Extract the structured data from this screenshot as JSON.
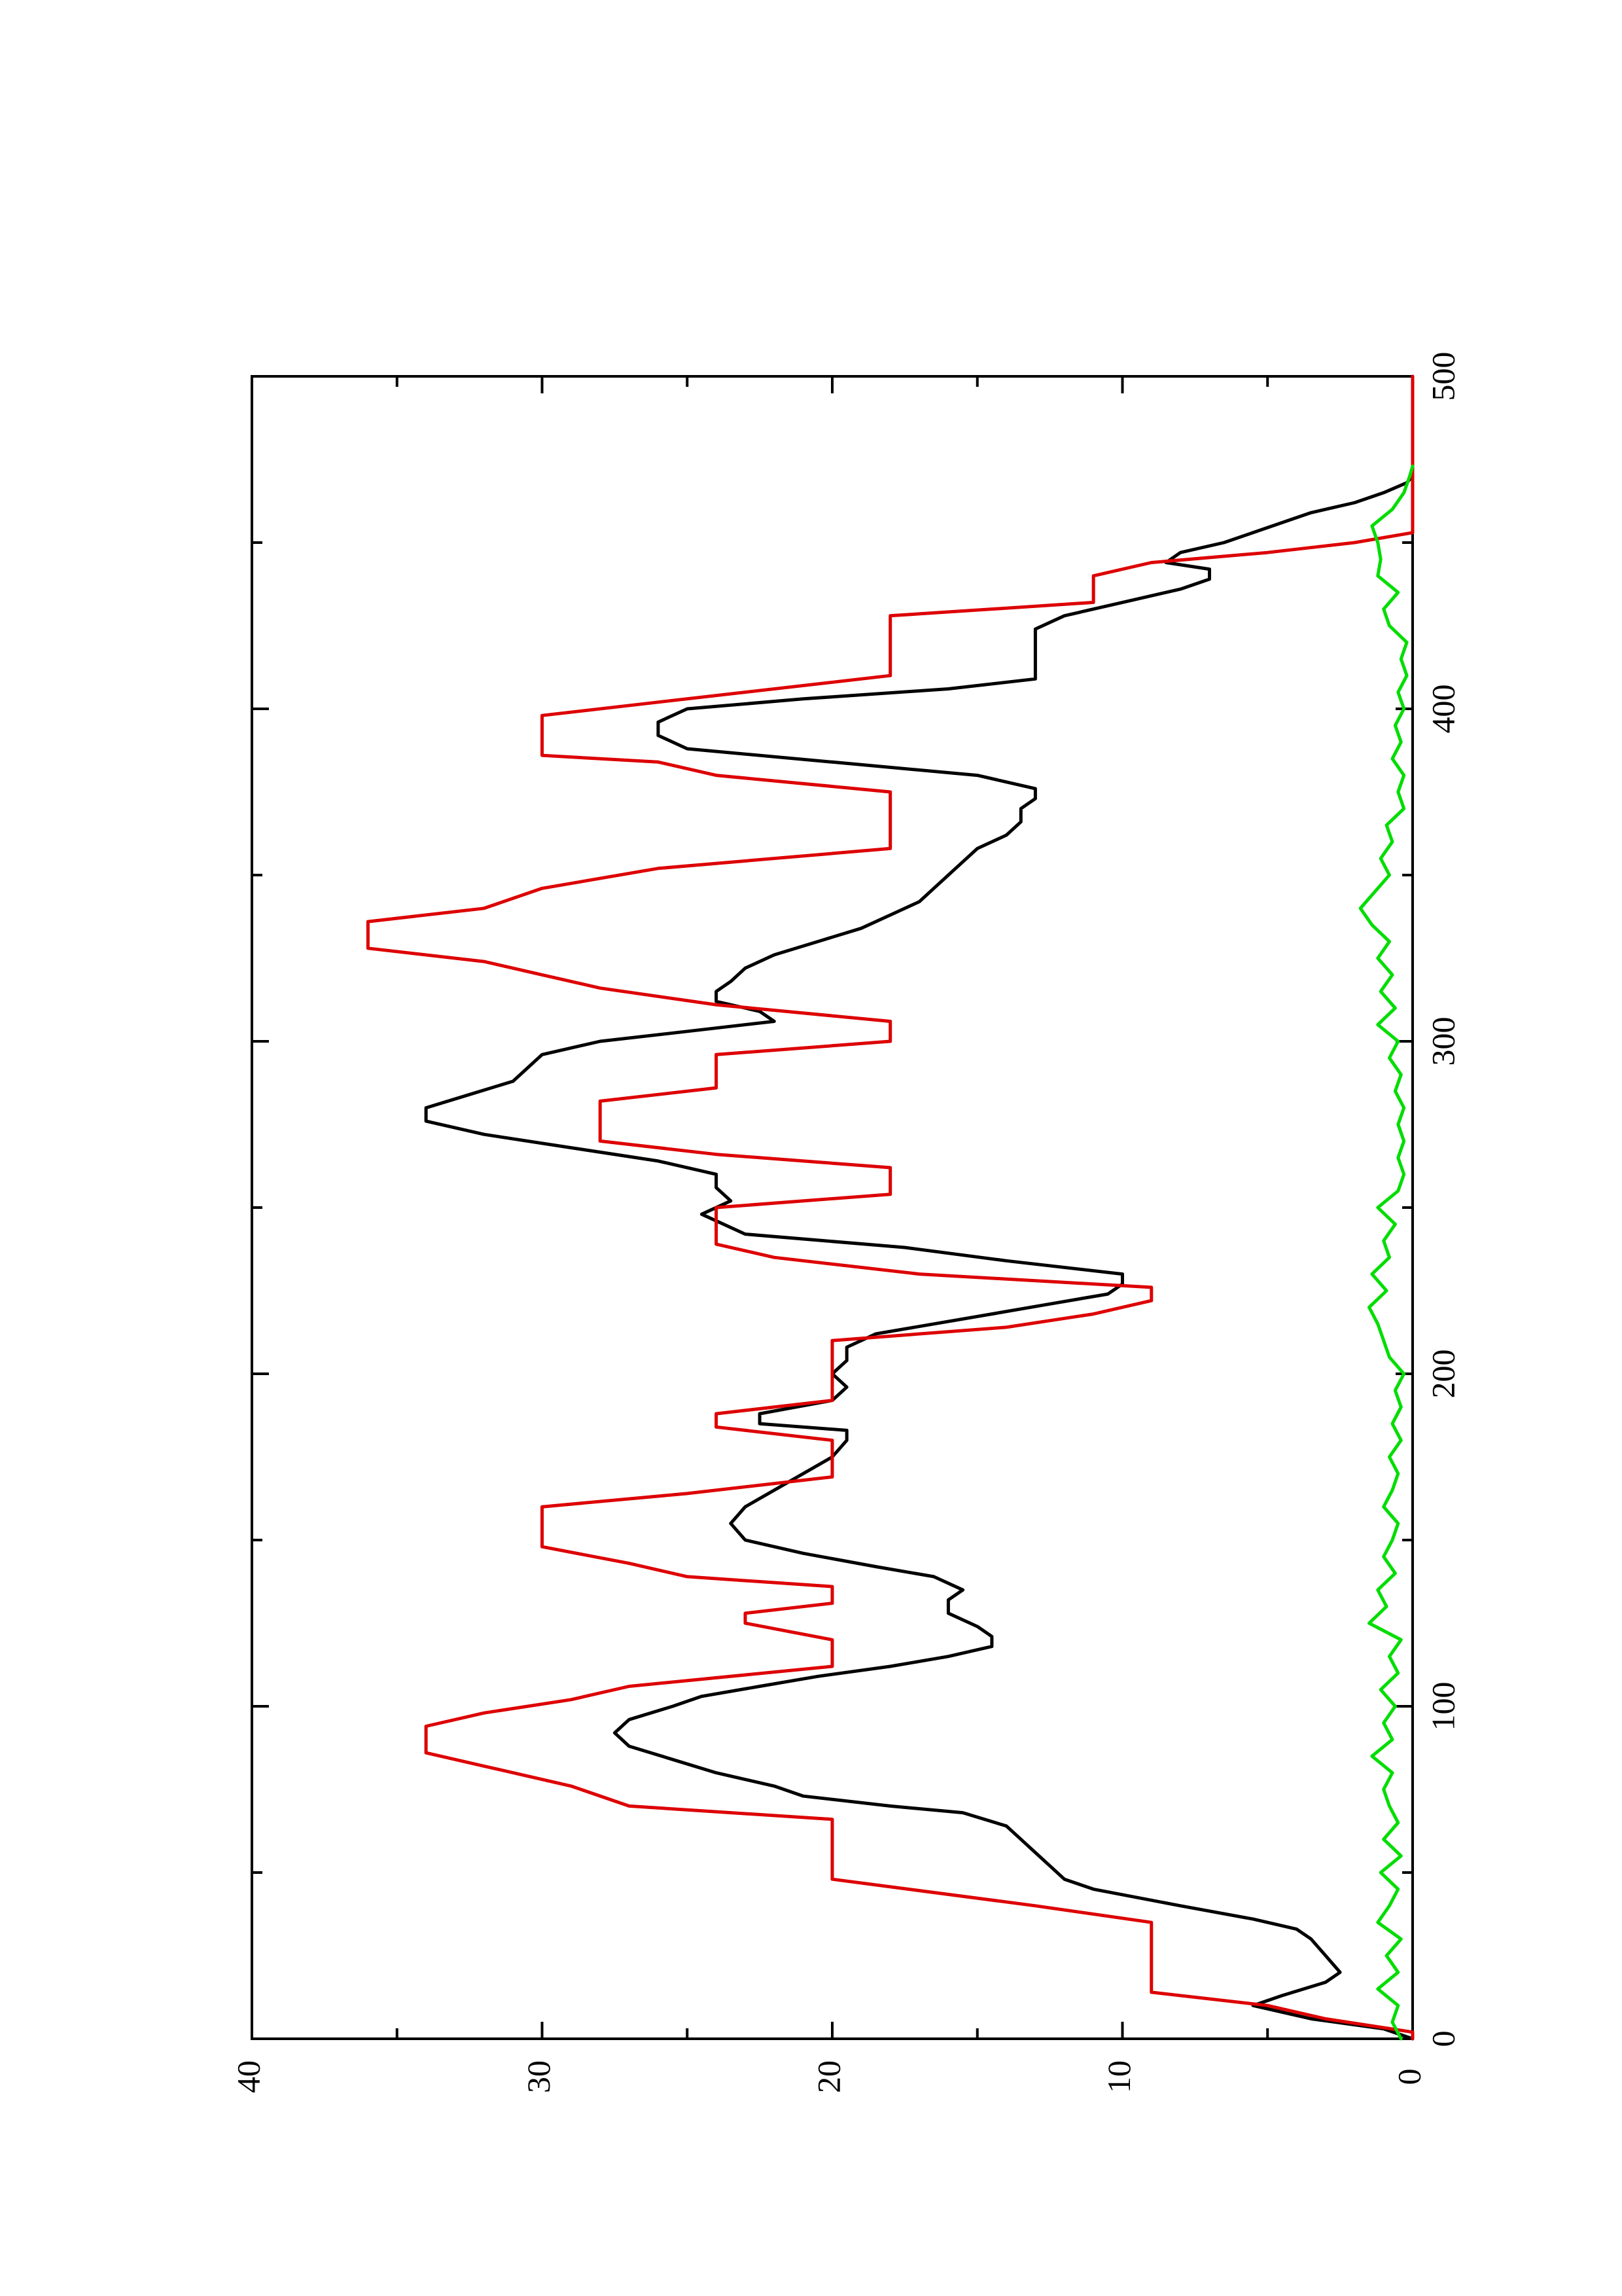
{
  "chart_data": {
    "type": "line",
    "orientation": "rotated-90-counterclockwise",
    "title": "",
    "xlabel": "",
    "ylabel": "",
    "xlim": [
      0,
      500
    ],
    "ylim": [
      0,
      40
    ],
    "x_ticks": [
      0,
      100,
      200,
      300,
      400,
      500
    ],
    "x_tick_labels": [
      "0",
      "100",
      "200",
      "300",
      "400",
      "500"
    ],
    "x_minor_ticks": [
      50,
      150,
      250,
      350,
      450
    ],
    "y_ticks": [
      0,
      10,
      20,
      30,
      40
    ],
    "y_tick_labels": [
      "0",
      "10",
      "20",
      "30",
      "40"
    ],
    "y_minor_ticks": [
      5,
      15,
      25,
      35
    ],
    "grid": false,
    "legend": "none",
    "series": [
      {
        "color": "#000000",
        "points": [
          [
            0,
            0
          ],
          [
            3,
            1
          ],
          [
            6,
            3.5
          ],
          [
            10,
            5.5
          ],
          [
            13,
            4.5
          ],
          [
            17,
            3
          ],
          [
            20,
            2.5
          ],
          [
            25,
            3
          ],
          [
            30,
            3.5
          ],
          [
            33,
            4
          ],
          [
            36,
            5.5
          ],
          [
            40,
            8
          ],
          [
            45,
            11
          ],
          [
            48,
            12
          ],
          [
            52,
            12.5
          ],
          [
            56,
            13
          ],
          [
            60,
            13.5
          ],
          [
            64,
            14
          ],
          [
            68,
            15.5
          ],
          [
            70,
            18
          ],
          [
            73,
            21
          ],
          [
            76,
            22
          ],
          [
            80,
            24
          ],
          [
            84,
            25.5
          ],
          [
            88,
            27
          ],
          [
            92,
            27.5
          ],
          [
            96,
            27
          ],
          [
            100,
            25.5
          ],
          [
            103,
            24.5
          ],
          [
            106,
            22.5
          ],
          [
            109,
            20.5
          ],
          [
            112,
            18
          ],
          [
            115,
            16
          ],
          [
            118,
            14.5
          ],
          [
            121,
            14.5
          ],
          [
            124,
            15
          ],
          [
            128,
            16
          ],
          [
            132,
            16
          ],
          [
            135,
            15.5
          ],
          [
            139,
            16.5
          ],
          [
            142,
            18.5
          ],
          [
            146,
            21
          ],
          [
            150,
            23
          ],
          [
            155,
            23.5
          ],
          [
            160,
            23
          ],
          [
            165,
            22
          ],
          [
            170,
            21
          ],
          [
            175,
            20
          ],
          [
            180,
            19.5
          ],
          [
            183,
            19.5
          ],
          [
            185,
            22.5
          ],
          [
            188,
            22.5
          ],
          [
            192,
            20
          ],
          [
            196,
            19.5
          ],
          [
            200,
            20
          ],
          [
            204,
            19.5
          ],
          [
            208,
            19.5
          ],
          [
            212,
            18.5
          ],
          [
            215,
            16.5
          ],
          [
            218,
            14.5
          ],
          [
            221,
            12.5
          ],
          [
            224,
            10.5
          ],
          [
            227,
            10
          ],
          [
            230,
            10
          ],
          [
            234,
            14
          ],
          [
            238,
            17.5
          ],
          [
            242,
            23
          ],
          [
            246,
            24
          ],
          [
            248,
            24.5
          ],
          [
            252,
            23.5
          ],
          [
            256,
            24
          ],
          [
            260,
            24
          ],
          [
            264,
            26
          ],
          [
            268,
            29
          ],
          [
            272,
            32
          ],
          [
            276,
            34
          ],
          [
            280,
            34
          ],
          [
            284,
            32.5
          ],
          [
            288,
            31
          ],
          [
            292,
            30.5
          ],
          [
            296,
            30
          ],
          [
            300,
            28
          ],
          [
            303,
            25
          ],
          [
            306,
            22
          ],
          [
            309,
            22.5
          ],
          [
            312,
            24
          ],
          [
            315,
            24
          ],
          [
            318,
            23.5
          ],
          [
            322,
            23
          ],
          [
            326,
            22
          ],
          [
            330,
            20.5
          ],
          [
            334,
            19
          ],
          [
            338,
            18
          ],
          [
            342,
            17
          ],
          [
            346,
            16.5
          ],
          [
            350,
            16
          ],
          [
            354,
            15.5
          ],
          [
            358,
            15
          ],
          [
            362,
            14
          ],
          [
            366,
            13.5
          ],
          [
            370,
            13.5
          ],
          [
            373,
            13
          ],
          [
            376,
            13
          ],
          [
            380,
            15
          ],
          [
            384,
            20
          ],
          [
            388,
            25
          ],
          [
            392,
            26
          ],
          [
            396,
            26
          ],
          [
            400,
            25
          ],
          [
            403,
            21
          ],
          [
            406,
            16
          ],
          [
            409,
            13
          ],
          [
            412,
            13
          ],
          [
            416,
            13
          ],
          [
            420,
            13
          ],
          [
            424,
            13
          ],
          [
            428,
            12
          ],
          [
            432,
            10
          ],
          [
            436,
            8
          ],
          [
            439,
            7
          ],
          [
            442,
            7
          ],
          [
            444,
            8.5
          ],
          [
            447,
            8
          ],
          [
            450,
            6.5
          ],
          [
            453,
            5.5
          ],
          [
            456,
            4.5
          ],
          [
            459,
            3.5
          ],
          [
            462,
            2
          ],
          [
            465,
            1
          ],
          [
            468,
            0.2
          ],
          [
            470,
            0
          ]
        ]
      },
      {
        "color": "#dd0000",
        "points": [
          [
            0,
            0
          ],
          [
            2,
            0
          ],
          [
            6,
            3
          ],
          [
            10,
            5
          ],
          [
            14,
            9
          ],
          [
            35,
            9
          ],
          [
            40,
            13
          ],
          [
            48,
            20
          ],
          [
            66,
            20
          ],
          [
            70,
            27
          ],
          [
            76,
            29
          ],
          [
            82,
            32
          ],
          [
            86,
            34
          ],
          [
            94,
            34
          ],
          [
            98,
            32
          ],
          [
            102,
            29
          ],
          [
            106,
            27
          ],
          [
            112,
            20
          ],
          [
            120,
            20
          ],
          [
            125,
            23
          ],
          [
            128,
            23
          ],
          [
            131,
            20
          ],
          [
            136,
            20
          ],
          [
            139,
            25
          ],
          [
            143,
            27
          ],
          [
            148,
            30
          ],
          [
            160,
            30
          ],
          [
            164,
            25
          ],
          [
            169,
            20
          ],
          [
            180,
            20
          ],
          [
            184,
            24
          ],
          [
            188,
            24
          ],
          [
            192,
            20
          ],
          [
            210,
            20
          ],
          [
            214,
            14
          ],
          [
            218,
            11
          ],
          [
            222,
            9
          ],
          [
            226,
            9
          ],
          [
            230,
            17
          ],
          [
            235,
            22
          ],
          [
            239,
            24
          ],
          [
            250,
            24
          ],
          [
            254,
            18
          ],
          [
            262,
            18
          ],
          [
            266,
            24
          ],
          [
            270,
            28
          ],
          [
            282,
            28
          ],
          [
            286,
            24
          ],
          [
            296,
            24
          ],
          [
            300,
            18
          ],
          [
            306,
            18
          ],
          [
            311,
            24
          ],
          [
            316,
            28
          ],
          [
            320,
            30
          ],
          [
            324,
            32
          ],
          [
            328,
            36
          ],
          [
            336,
            36
          ],
          [
            340,
            32
          ],
          [
            346,
            30
          ],
          [
            352,
            26
          ],
          [
            358,
            18
          ],
          [
            375,
            18
          ],
          [
            380,
            24
          ],
          [
            384,
            26
          ],
          [
            386,
            30
          ],
          [
            398,
            30
          ],
          [
            402,
            26
          ],
          [
            410,
            18
          ],
          [
            428,
            18
          ],
          [
            432,
            11
          ],
          [
            440,
            11
          ],
          [
            444,
            9
          ],
          [
            447,
            5
          ],
          [
            450,
            2
          ],
          [
            453,
            0
          ],
          [
            500,
            0
          ]
        ]
      },
      {
        "color": "#00dd00",
        "points": [
          [
            0,
            0.4
          ],
          [
            5,
            0.7
          ],
          [
            10,
            0.5
          ],
          [
            15,
            1.2
          ],
          [
            20,
            0.5
          ],
          [
            25,
            0.9
          ],
          [
            30,
            0.4
          ],
          [
            35,
            1.2
          ],
          [
            40,
            0.8
          ],
          [
            45,
            0.5
          ],
          [
            50,
            1.1
          ],
          [
            55,
            0.4
          ],
          [
            60,
            1
          ],
          [
            65,
            0.5
          ],
          [
            70,
            0.8
          ],
          [
            75,
            1
          ],
          [
            80,
            0.7
          ],
          [
            85,
            1.4
          ],
          [
            90,
            0.7
          ],
          [
            95,
            1
          ],
          [
            100,
            0.6
          ],
          [
            105,
            1.1
          ],
          [
            110,
            0.5
          ],
          [
            115,
            0.8
          ],
          [
            120,
            0.4
          ],
          [
            125,
            1.5
          ],
          [
            130,
            0.9
          ],
          [
            135,
            1.2
          ],
          [
            140,
            0.6
          ],
          [
            145,
            1
          ],
          [
            150,
            0.7
          ],
          [
            155,
            0.5
          ],
          [
            160,
            1
          ],
          [
            165,
            0.7
          ],
          [
            170,
            0.5
          ],
          [
            175,
            0.8
          ],
          [
            180,
            0.4
          ],
          [
            185,
            0.7
          ],
          [
            190,
            0.4
          ],
          [
            195,
            0.6
          ],
          [
            200,
            0.3
          ],
          [
            205,
            0.8
          ],
          [
            210,
            1
          ],
          [
            215,
            1.2
          ],
          [
            220,
            1.5
          ],
          [
            225,
            0.9
          ],
          [
            230,
            1.4
          ],
          [
            235,
            0.8
          ],
          [
            240,
            1
          ],
          [
            245,
            0.6
          ],
          [
            250,
            1.2
          ],
          [
            255,
            0.5
          ],
          [
            260,
            0.3
          ],
          [
            265,
            0.5
          ],
          [
            270,
            0.3
          ],
          [
            275,
            0.5
          ],
          [
            280,
            0.3
          ],
          [
            285,
            0.6
          ],
          [
            290,
            0.4
          ],
          [
            295,
            0.8
          ],
          [
            300,
            0.5
          ],
          [
            305,
            1.2
          ],
          [
            310,
            0.6
          ],
          [
            315,
            1.1
          ],
          [
            320,
            0.7
          ],
          [
            325,
            1.2
          ],
          [
            330,
            0.8
          ],
          [
            335,
            1.4
          ],
          [
            340,
            1.8
          ],
          [
            345,
            1.3
          ],
          [
            350,
            0.8
          ],
          [
            355,
            1.1
          ],
          [
            360,
            0.7
          ],
          [
            365,
            0.9
          ],
          [
            370,
            0.3
          ],
          [
            375,
            0.5
          ],
          [
            380,
            0.3
          ],
          [
            385,
            0.7
          ],
          [
            390,
            0.4
          ],
          [
            395,
            0.6
          ],
          [
            400,
            0.3
          ],
          [
            405,
            0.5
          ],
          [
            410,
            0.2
          ],
          [
            415,
            0.4
          ],
          [
            420,
            0.2
          ],
          [
            425,
            0.8
          ],
          [
            430,
            1
          ],
          [
            435,
            0.5
          ],
          [
            440,
            1.2
          ],
          [
            445,
            1.1
          ],
          [
            450,
            1.2
          ],
          [
            455,
            1.4
          ],
          [
            460,
            0.7
          ],
          [
            465,
            0.3
          ],
          [
            470,
            0.1
          ],
          [
            473,
            0
          ]
        ]
      }
    ]
  }
}
